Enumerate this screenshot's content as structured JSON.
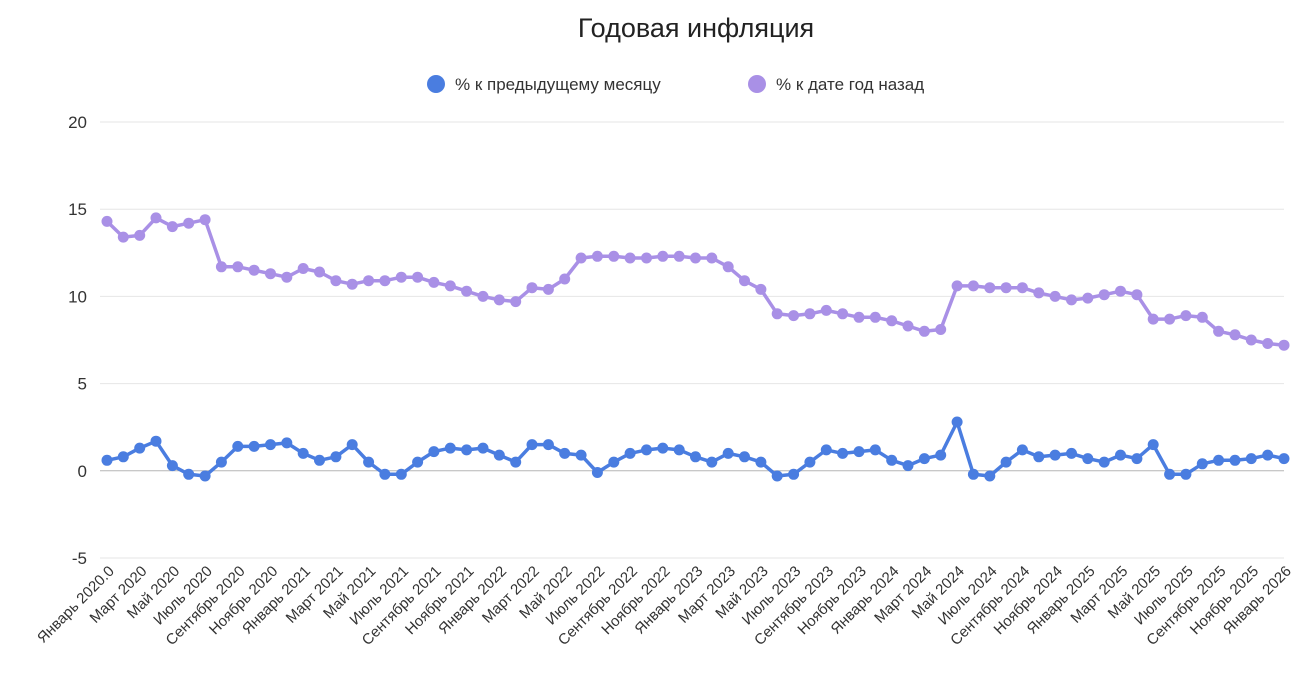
{
  "chart_data": {
    "type": "line",
    "title": "Годовая инфляция",
    "xlabel": "",
    "ylabel": "",
    "ylim": [
      -5,
      20
    ],
    "yticks": [
      "-5",
      "0",
      "5",
      "10",
      "15",
      "20"
    ],
    "grid": true,
    "legend_position": "top",
    "x_tick_labels": [
      "Январь 2020.0",
      "Март 2020",
      "Май 2020",
      "Июль 2020",
      "Сентябрь 2020",
      "Ноябрь 2020",
      "Январь 2021",
      "Март 2021",
      "Май 2021",
      "Июль 2021",
      "Сентябрь 2021",
      "Ноябрь 2021",
      "Январь 2022",
      "Март 2022",
      "Май 2022",
      "Июль 2022",
      "Сентябрь 2022",
      "Ноябрь 2022",
      "Январь 2023",
      "Март 2023",
      "Май 2023",
      "Июль 2023",
      "Сентябрь 2023",
      "Ноябрь 2023",
      "Январь 2024",
      "Март 2024",
      "Май 2024",
      "Июль 2024",
      "Сентябрь 2024",
      "Ноябрь 2024",
      "Январь 2025",
      "Март 2025",
      "Май 2025",
      "Июль 2025",
      "Сентябрь 2025",
      "Ноябрь 2025",
      "Январь 2026"
    ],
    "series": [
      {
        "name": "% к предыдущему месяцу",
        "color": "#4a7de0",
        "values": [
          0.6,
          0.8,
          1.3,
          1.7,
          0.3,
          -0.2,
          -0.3,
          0.5,
          1.4,
          1.4,
          1.5,
          1.6,
          1.0,
          0.6,
          0.8,
          1.5,
          0.5,
          -0.2,
          -0.2,
          0.5,
          1.1,
          1.3,
          1.2,
          1.3,
          0.9,
          0.5,
          1.5,
          1.5,
          1.0,
          0.9,
          -0.1,
          0.5,
          1.0,
          1.2,
          1.3,
          1.2,
          0.8,
          0.5,
          1.0,
          0.8,
          0.5,
          -0.3,
          -0.2,
          0.5,
          1.2,
          1.0,
          1.1,
          1.2,
          0.6,
          0.3,
          0.7,
          0.9,
          2.8,
          -0.2,
          -0.3,
          0.5,
          1.2,
          0.8,
          0.9,
          1.0,
          0.7,
          0.5,
          0.9,
          0.7,
          1.5,
          -0.2,
          -0.2,
          0.4,
          0.6,
          0.6,
          0.7,
          0.9,
          0.7
        ]
      },
      {
        "name": "% к дате год назад",
        "color": "#a990e6",
        "values": [
          14.3,
          13.4,
          13.5,
          14.5,
          14.0,
          14.2,
          14.4,
          11.7,
          11.7,
          11.5,
          11.3,
          11.1,
          11.6,
          11.4,
          10.9,
          10.7,
          10.9,
          10.9,
          11.1,
          11.1,
          10.8,
          10.6,
          10.3,
          10.0,
          9.8,
          9.7,
          10.5,
          10.4,
          11.0,
          12.2,
          12.3,
          12.3,
          12.2,
          12.2,
          12.3,
          12.3,
          12.2,
          12.2,
          11.7,
          10.9,
          10.4,
          9.0,
          8.9,
          9.0,
          9.2,
          9.0,
          8.8,
          8.8,
          8.6,
          8.3,
          8.0,
          8.1,
          10.6,
          10.6,
          10.5,
          10.5,
          10.5,
          10.2,
          10.0,
          9.8,
          9.9,
          10.1,
          10.3,
          10.1,
          8.7,
          8.7,
          8.9,
          8.8,
          8.0,
          7.8,
          7.5,
          7.3,
          7.2
        ]
      }
    ]
  }
}
